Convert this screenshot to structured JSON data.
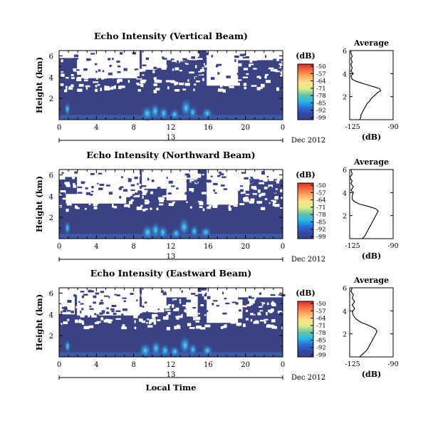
{
  "panels": [
    {
      "title": "Echo Intensity (Vertical Beam)",
      "ylabel": "Height (km)",
      "unit_label": "(dB)",
      "profile": {
        "title": "Average",
        "xlabel": "(dB)",
        "x_ticks": [
          "-125",
          "-90"
        ],
        "y_ticks": [
          "2",
          "4",
          "6"
        ],
        "points": [
          [
            -117,
            0.0
          ],
          [
            -116,
            0.2
          ],
          [
            -116,
            0.4
          ],
          [
            -115,
            0.6
          ],
          [
            -114,
            0.8
          ],
          [
            -113,
            1.0
          ],
          [
            -112,
            1.2
          ],
          [
            -111,
            1.4
          ],
          [
            -109,
            1.6
          ],
          [
            -108,
            1.8
          ],
          [
            -106,
            2.0
          ],
          [
            -104,
            2.2
          ],
          [
            -102,
            2.4
          ],
          [
            -100,
            2.5
          ],
          [
            -101,
            2.7
          ],
          [
            -107,
            2.9
          ],
          [
            -113,
            3.1
          ],
          [
            -119,
            3.3
          ],
          [
            -123,
            3.5
          ],
          [
            -124,
            3.8
          ],
          [
            -122,
            4.0
          ],
          [
            -124,
            4.2
          ],
          [
            -123,
            4.5
          ],
          [
            -124,
            4.8
          ],
          [
            -123,
            5.0
          ],
          [
            -124,
            5.3
          ],
          [
            -123,
            5.5
          ],
          [
            -124,
            5.8
          ],
          [
            -124,
            6.0
          ]
        ]
      }
    },
    {
      "title": "Echo Intensity (Northward Beam)",
      "ylabel": "Height (km)",
      "unit_label": "(dB)",
      "profile": {
        "title": "Average",
        "xlabel": "(dB)",
        "x_ticks": [
          "-125",
          "-90"
        ],
        "y_ticks": [
          "2",
          "4",
          "6"
        ],
        "points": [
          [
            -115,
            0.0
          ],
          [
            -113,
            0.2
          ],
          [
            -112,
            0.4
          ],
          [
            -111,
            0.6
          ],
          [
            -110,
            0.8
          ],
          [
            -109,
            1.0
          ],
          [
            -108,
            1.2
          ],
          [
            -107,
            1.4
          ],
          [
            -106,
            1.6
          ],
          [
            -105,
            1.8
          ],
          [
            -104,
            2.0
          ],
          [
            -103,
            2.2
          ],
          [
            -102,
            2.4
          ],
          [
            -104,
            2.6
          ],
          [
            -110,
            2.8
          ],
          [
            -117,
            3.0
          ],
          [
            -121,
            3.2
          ],
          [
            -123,
            3.4
          ],
          [
            -123,
            3.7
          ],
          [
            -122,
            4.0
          ],
          [
            -124,
            4.2
          ],
          [
            -122,
            4.5
          ],
          [
            -124,
            4.8
          ],
          [
            -123,
            5.0
          ],
          [
            -125,
            5.3
          ],
          [
            -123,
            5.6
          ],
          [
            -124,
            6.0
          ]
        ]
      }
    },
    {
      "title": "Echo Intensity (Eastward Beam)",
      "ylabel": "Height (km)",
      "unit_label": "(dB)",
      "profile": {
        "title": "Average",
        "xlabel": "(dB)",
        "x_ticks": [
          "-125",
          "-90"
        ],
        "y_ticks": [
          "2",
          "4",
          "6"
        ],
        "points": [
          [
            -117,
            0.0
          ],
          [
            -115,
            0.2
          ],
          [
            -113,
            0.4
          ],
          [
            -111,
            0.6
          ],
          [
            -110,
            0.8
          ],
          [
            -109,
            1.0
          ],
          [
            -108,
            1.2
          ],
          [
            -107,
            1.4
          ],
          [
            -106,
            1.6
          ],
          [
            -105,
            1.8
          ],
          [
            -104,
            2.0
          ],
          [
            -103,
            2.2
          ],
          [
            -104,
            2.4
          ],
          [
            -107,
            2.6
          ],
          [
            -111,
            2.8
          ],
          [
            -116,
            3.0
          ],
          [
            -120,
            3.3
          ],
          [
            -122,
            3.6
          ],
          [
            -123,
            3.9
          ],
          [
            -121,
            4.2
          ],
          [
            -123,
            4.5
          ],
          [
            -121,
            4.8
          ],
          [
            -123,
            5.1
          ],
          [
            -122,
            5.4
          ],
          [
            -124,
            5.7
          ],
          [
            -123,
            6.0
          ]
        ]
      }
    }
  ],
  "x_ticks": [
    "0",
    "4",
    "8",
    "12",
    "16",
    "20",
    "0"
  ],
  "y_ticks": [
    "2",
    "4",
    "6"
  ],
  "date_tick": "13",
  "date_label": "Dec 2012",
  "xlabel": "Local Time",
  "colorbar_ticks": [
    "-50",
    "-57",
    "-64",
    "-71",
    "-78",
    "-85",
    "-92",
    "-99"
  ],
  "colors": {
    "background_dark": "#3a4282",
    "no_data": "#ffffff",
    "colorbar": [
      "#d73027",
      "#f46d43",
      "#fdae61",
      "#fee08b",
      "#d9ef8b",
      "#66c2a5",
      "#26b9e8",
      "#2a6fd8",
      "#3548a8",
      "#3a4282"
    ]
  },
  "chart_data": [
    {
      "type": "heatmap",
      "title": "Echo Intensity (Vertical Beam)",
      "xlabel": "Local Time",
      "ylabel": "Height (km)",
      "x_ticks": [
        "0",
        "4",
        "8",
        "12",
        "16",
        "20",
        "0"
      ],
      "y_ticks": [
        "2",
        "4",
        "6"
      ],
      "ylim": [
        0,
        6
      ],
      "colorbar": {
        "label": "(dB)",
        "ticks": [
          -50,
          -57,
          -64,
          -71,
          -78,
          -85,
          -92,
          -99
        ]
      }
    },
    {
      "type": "line",
      "title": "Average",
      "xlabel": "(dB)",
      "xlim": [
        -125,
        -90
      ],
      "ylim": [
        0,
        6
      ]
    },
    {
      "type": "heatmap",
      "title": "Echo Intensity (Northward Beam)",
      "xlabel": "Local Time",
      "ylabel": "Height (km)",
      "x_ticks": [
        "0",
        "4",
        "8",
        "12",
        "16",
        "20",
        "0"
      ],
      "y_ticks": [
        "2",
        "4",
        "6"
      ],
      "ylim": [
        0,
        6
      ],
      "colorbar": {
        "label": "(dB)",
        "ticks": [
          -50,
          -57,
          -64,
          -71,
          -78,
          -85,
          -92,
          -99
        ]
      }
    },
    {
      "type": "line",
      "title": "Average",
      "xlabel": "(dB)",
      "xlim": [
        -125,
        -90
      ],
      "ylim": [
        0,
        6
      ]
    },
    {
      "type": "heatmap",
      "title": "Echo Intensity (Eastward Beam)",
      "xlabel": "Local Time",
      "ylabel": "Height (km)",
      "x_ticks": [
        "0",
        "4",
        "8",
        "12",
        "16",
        "20",
        "0"
      ],
      "y_ticks": [
        "2",
        "4",
        "6"
      ],
      "ylim": [
        0,
        6
      ],
      "colorbar": {
        "label": "(dB)",
        "ticks": [
          -50,
          -57,
          -64,
          -71,
          -78,
          -85,
          -92,
          -99
        ]
      }
    },
    {
      "type": "line",
      "title": "Average",
      "xlabel": "(dB)",
      "xlim": [
        -125,
        -90
      ],
      "ylim": [
        0,
        6
      ]
    }
  ]
}
